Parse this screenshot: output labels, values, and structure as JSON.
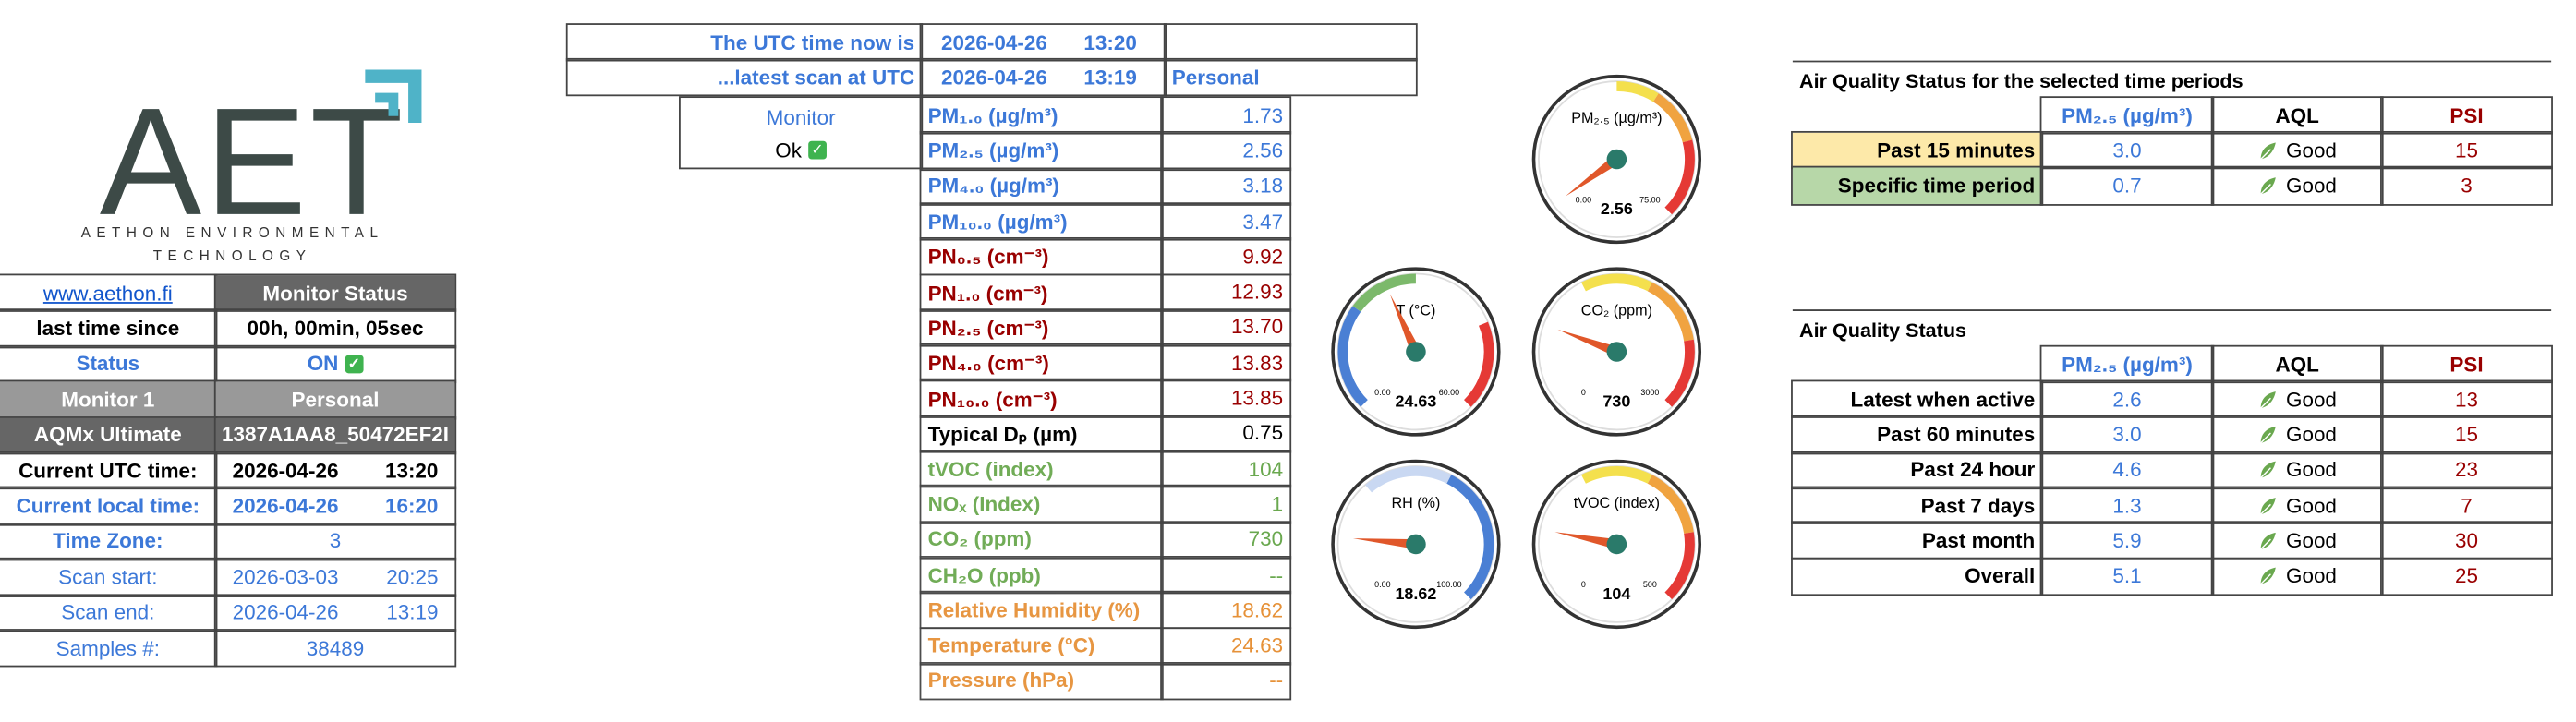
{
  "logo": {
    "mark": "AET",
    "name": "AETHON ENVIRONMENTAL TECHNOLOGY"
  },
  "status_panel": {
    "link": "www.aethon.fi",
    "heading": "Monitor Status",
    "rows": [
      [
        "last time since",
        "00h, 00min, 05sec"
      ],
      [
        "Status",
        "ON"
      ],
      [
        "Monitor 1",
        "Personal"
      ],
      [
        "AQMx Ultimate",
        "1387A1AA8_50472EF2I"
      ],
      [
        "Current UTC time:",
        "2026-04-26",
        "13:20"
      ],
      [
        "Current local time:",
        "2026-04-26",
        "16:20"
      ],
      [
        "Time Zone:",
        "3"
      ],
      [
        "Scan start:",
        "2026-03-03",
        "20:25"
      ],
      [
        "Scan end:",
        "2026-04-26",
        "13:19"
      ],
      [
        "Samples #:",
        "38489"
      ]
    ]
  },
  "clock": {
    "rows": [
      [
        "The UTC time now is",
        "2026-04-26",
        "13:20"
      ],
      [
        "...latest scan at UTC",
        "2026-04-26",
        "13:19",
        "Personal"
      ]
    ],
    "monitor_label": "Monitor",
    "monitor_state": "Ok"
  },
  "measurements": [
    {
      "name": "PM₁.₀ (µg/m³)",
      "value": "1.73"
    },
    {
      "name": "PM₂.₅ (µg/m³)",
      "value": "2.56"
    },
    {
      "name": "PM₄.₀ (µg/m³)",
      "value": "3.18"
    },
    {
      "name": "PM₁₀.₀ (µg/m³)",
      "value": "3.47"
    },
    {
      "name": "PN₀.₅ (cm⁻³)",
      "value": "9.92"
    },
    {
      "name": "PN₁.₀ (cm⁻³)",
      "value": "12.93"
    },
    {
      "name": "PN₂.₅ (cm⁻³)",
      "value": "13.70"
    },
    {
      "name": "PN₄.₀ (cm⁻³)",
      "value": "13.83"
    },
    {
      "name": "PN₁₀.₀ (cm⁻³)",
      "value": "13.85"
    },
    {
      "name": "Typical Dₚ (µm)",
      "value": "0.75"
    },
    {
      "name": "tVOC (index)",
      "value": "104"
    },
    {
      "name": "NOₓ (Index)",
      "value": "1"
    },
    {
      "name": "CO₂ (ppm)",
      "value": "730"
    },
    {
      "name": "CH₂O (ppb)",
      "value": "--"
    },
    {
      "name": "Relative Humidity (%)",
      "value": "18.62"
    },
    {
      "name": "Temperature (°C)",
      "value": "24.63"
    },
    {
      "name": "Pressure (hPa)",
      "value": "--"
    }
  ],
  "gauges": [
    {
      "title": "PM₂.₅ (µg/m³)",
      "value": 2.56,
      "min": {
        "value": 0,
        "label": "0.00"
      },
      "max": {
        "value": 75,
        "label": "75.00"
      }
    },
    {
      "title": "T (°C)",
      "value": 24.63,
      "min": {
        "value": 0,
        "label": "0.00"
      },
      "max": {
        "value": 60,
        "label": "60.00"
      }
    },
    {
      "title": "CO₂ (ppm)",
      "value": 730,
      "min": 0,
      "max": 3000
    },
    {
      "title": "RH (%)",
      "value": 18.62,
      "min": {
        "value": 0,
        "label": "0.00"
      },
      "max": {
        "value": 100,
        "label": "100.00"
      }
    },
    {
      "title": "tVOC (index)",
      "value": 104,
      "min": 0,
      "max": 500
    }
  ],
  "aq_selected": {
    "title": "Air Quality Status for the selected time periods",
    "headers": [
      "PM₂.₅ (µg/m³)",
      "AQL",
      "PSI"
    ],
    "rows": [
      [
        "Past 15 minutes",
        "3.0",
        "Good",
        "15"
      ],
      [
        "Specific time period",
        "0.7",
        "Good",
        "3"
      ]
    ]
  },
  "aq_status": {
    "title": "Air Quality Status",
    "headers": [
      "PM₂.₅ (µg/m³)",
      "AQL",
      "PSI"
    ],
    "rows": [
      [
        "Latest when active",
        "2.6",
        "Good",
        "13"
      ],
      [
        "Past 60 minutes",
        "3.0",
        "Good",
        "15"
      ],
      [
        "Past 24 hour",
        "4.6",
        "Good",
        "23"
      ],
      [
        "Past 7 days",
        "1.3",
        "Good",
        "7"
      ],
      [
        "Past month",
        "5.9",
        "Good",
        "30"
      ],
      [
        "Overall",
        "5.1",
        "Good",
        "25"
      ]
    ]
  }
}
